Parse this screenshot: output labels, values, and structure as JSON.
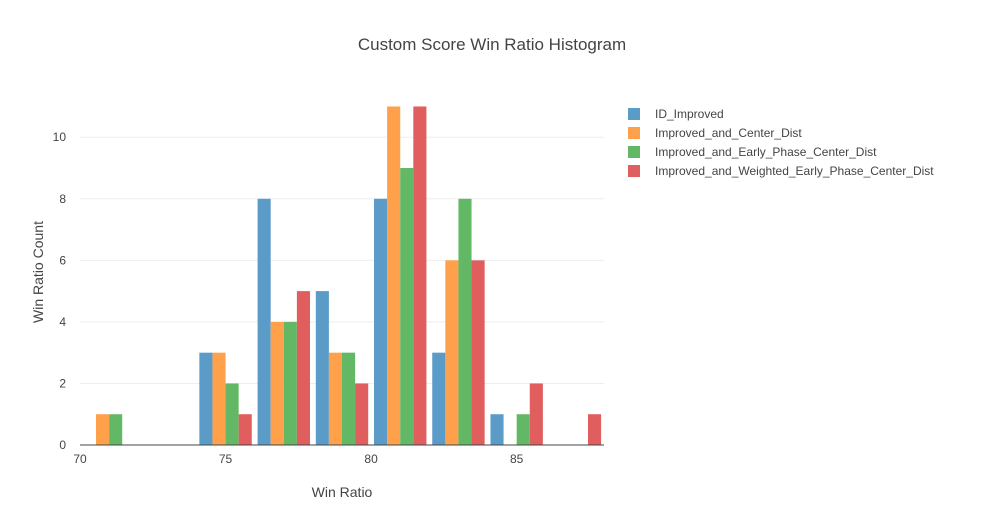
{
  "chart_data": {
    "type": "bar",
    "title": "Custom Score Win Ratio Histogram",
    "xlabel": "Win Ratio",
    "ylabel": "Win Ratio Count",
    "xlim": [
      70,
      88
    ],
    "ylim": [
      0,
      11.6
    ],
    "xticks": [
      70,
      75,
      80,
      85
    ],
    "yticks": [
      0,
      2,
      4,
      6,
      8,
      10
    ],
    "bin_width": 2,
    "bin_starts": [
      70,
      72,
      74,
      76,
      78,
      80,
      82,
      84,
      86
    ],
    "grid": true,
    "legend_position": "top-right",
    "series": [
      {
        "name": "ID_Improved",
        "color": "#5b9bc8",
        "values": [
          0,
          0,
          3,
          8,
          5,
          8,
          3,
          1,
          0
        ]
      },
      {
        "name": "Improved_and_Center_Dist",
        "color": "#ffa04a",
        "values": [
          1,
          0,
          3,
          4,
          3,
          11,
          6,
          0,
          0
        ]
      },
      {
        "name": "Improved_and_Early_Phase_Center_Dist",
        "color": "#63b865",
        "values": [
          1,
          0,
          2,
          4,
          3,
          9,
          8,
          1,
          0
        ]
      },
      {
        "name": "Improved_and_Weighted_Early_Phase_Center_Dist",
        "color": "#e05e5e",
        "values": [
          0,
          0,
          1,
          5,
          2,
          11,
          6,
          2,
          1
        ]
      }
    ]
  }
}
